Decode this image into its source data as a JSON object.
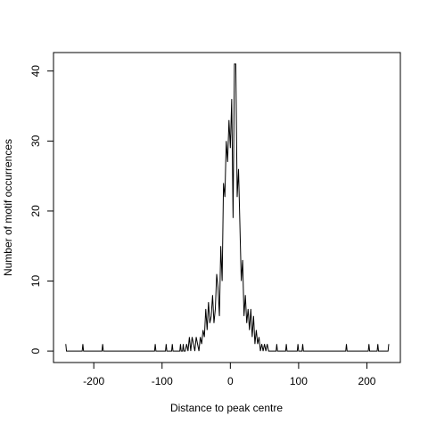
{
  "chart_data": {
    "type": "line",
    "x_label": "Distance to peak centre",
    "y_label": "Number of motif occurrences",
    "series": [
      {
        "color": "#000000",
        "x": [
          -241,
          -240,
          -217,
          -216,
          -215,
          -188,
          -187,
          -186,
          -111,
          -110,
          -109,
          -95,
          -94,
          -93,
          -86,
          -85,
          -84,
          -74,
          -73,
          -72,
          -70,
          -69,
          -68,
          -66,
          -64,
          -62,
          -60,
          -58,
          -56,
          -54,
          -52,
          -50,
          -48,
          -46,
          -44,
          -42,
          -40,
          -38,
          -36,
          -34,
          -32,
          -30,
          -28,
          -26,
          -24,
          -22,
          -20,
          -18,
          -16,
          -14,
          -12,
          -10,
          -8,
          -6,
          -4,
          -2,
          0,
          2,
          4,
          6,
          8,
          10,
          12,
          14,
          16,
          18,
          20,
          22,
          24,
          26,
          28,
          30,
          32,
          34,
          36,
          38,
          40,
          42,
          44,
          46,
          48,
          50,
          52,
          54,
          56,
          58,
          67,
          68,
          69,
          81,
          82,
          83,
          98,
          99,
          100,
          105,
          106,
          107,
          169,
          170,
          171,
          202,
          203,
          204,
          215,
          216,
          217,
          231,
          232
        ],
        "values": [
          1,
          0,
          0,
          1,
          0,
          0,
          1,
          0,
          0,
          1,
          0,
          0,
          1,
          0,
          0,
          1,
          0,
          0,
          1,
          0,
          0,
          1,
          0,
          0,
          1,
          0,
          2,
          0,
          2,
          1,
          0,
          2,
          1,
          0,
          2,
          1,
          3,
          2,
          6,
          3,
          7,
          4,
          5,
          8,
          4,
          6,
          11,
          9,
          5,
          15,
          10,
          24,
          22,
          30,
          27,
          33,
          29,
          36,
          19,
          41,
          41,
          22,
          26,
          18,
          10,
          13,
          5,
          8,
          4,
          6,
          3,
          6,
          2,
          5,
          1,
          3,
          1,
          2,
          0,
          1,
          0,
          1,
          0,
          1,
          0,
          0,
          0,
          1,
          0,
          0,
          1,
          0,
          0,
          1,
          0,
          0,
          1,
          0,
          0,
          1,
          0,
          0,
          1,
          0,
          0,
          1,
          0,
          0,
          1
        ]
      }
    ],
    "xlim": [
      -259,
      249
    ],
    "ylim": [
      -1.64,
      42.64
    ],
    "xticks": [
      -200,
      -100,
      0,
      100,
      200
    ],
    "yticks": [
      0,
      10,
      20,
      30,
      40
    ]
  }
}
